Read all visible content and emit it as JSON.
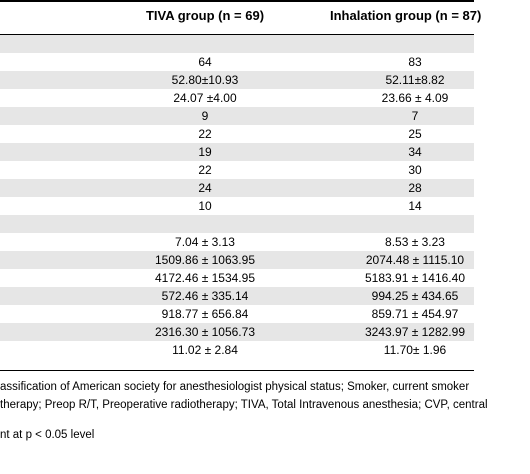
{
  "table": {
    "headers": {
      "tiva": "TIVA group (n = 69)",
      "inhalation": "Inhalation group (n = 87)"
    },
    "rows": [
      {
        "tiva": "",
        "inhalation": ""
      },
      {
        "tiva": "64",
        "inhalation": "83"
      },
      {
        "tiva": "52.80±10.93",
        "inhalation": "52.11±8.82"
      },
      {
        "tiva": "24.07 ±4.00",
        "inhalation": "23.66 ± 4.09"
      },
      {
        "tiva": "9",
        "inhalation": "7"
      },
      {
        "tiva": "22",
        "inhalation": "25"
      },
      {
        "tiva": "19",
        "inhalation": "34"
      },
      {
        "tiva": "22",
        "inhalation": "30"
      },
      {
        "tiva": "24",
        "inhalation": "28"
      },
      {
        "tiva": "10",
        "inhalation": "14"
      },
      {
        "tiva": "",
        "inhalation": ""
      },
      {
        "tiva": "7.04 ± 3.13",
        "inhalation": "8.53 ± 3.23"
      },
      {
        "tiva": "1509.86 ± 1063.95",
        "inhalation": "2074.48 ± 1115.10"
      },
      {
        "tiva": "4172.46 ± 1534.95",
        "inhalation": "5183.91 ± 1416.40"
      },
      {
        "tiva": "572.46 ± 335.14",
        "inhalation": "994.25 ± 434.65"
      },
      {
        "tiva": "918.77 ± 656.84",
        "inhalation": "859.71 ± 454.97"
      },
      {
        "tiva": "2316.30 ± 1056.73",
        "inhalation": "3243.97 ± 1282.99"
      },
      {
        "tiva": "11.02 ± 2.84",
        "inhalation": "11.70± 1.96"
      }
    ]
  },
  "footnotes": {
    "line1": "assification of American society for anesthesiologist physical status; Smoker, current smoker",
    "line2": "therapy; Preop R/T, Preoperative radiotherapy; TIVA, Total Intravenous anesthesia; CVP, central",
    "line3": "nt at p < 0.05 level"
  }
}
